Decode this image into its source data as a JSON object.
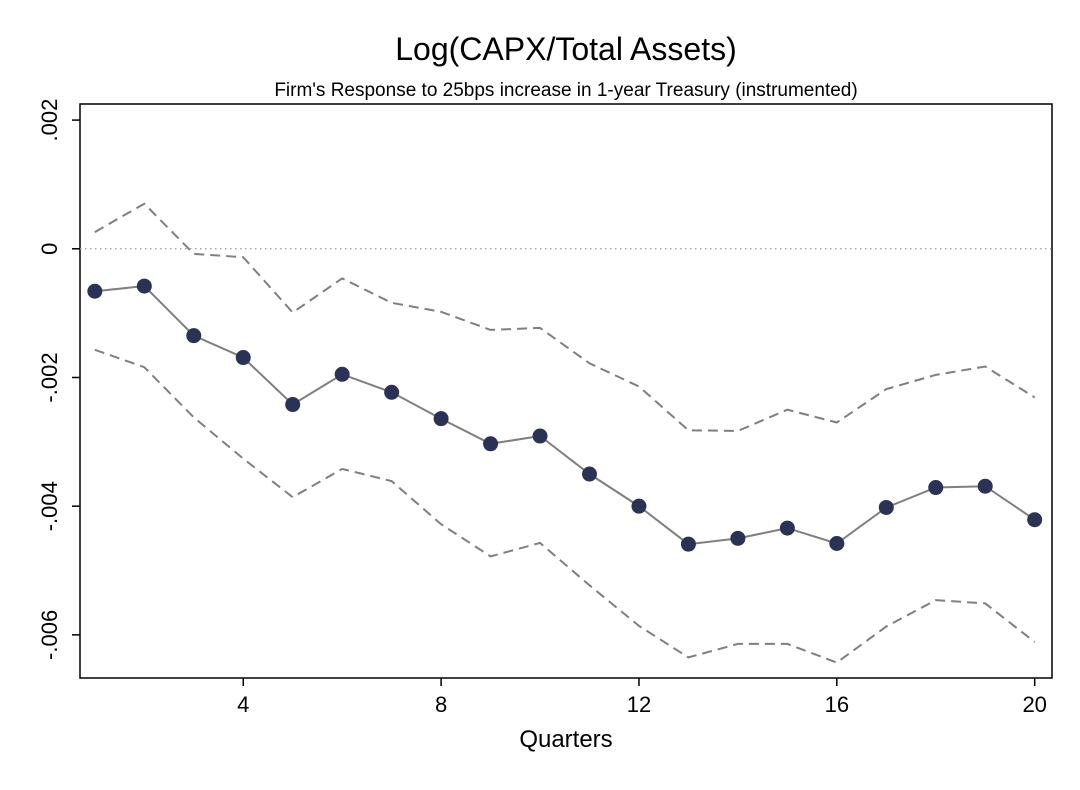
{
  "chart_data": {
    "type": "line",
    "title": "Log(CAPX/Total Assets)",
    "subtitle": "Firm's Response to 25bps increase in 1-year Treasury (instrumented)",
    "xlabel": "Quarters",
    "ylabel": "",
    "xlim": [
      0.7,
      20.35
    ],
    "ylim": [
      -0.00667,
      0.00225
    ],
    "x_ticks": [
      4,
      8,
      12,
      16,
      20
    ],
    "x_tick_labels": [
      "4",
      "8",
      "12",
      "16",
      "20"
    ],
    "y_ticks": [
      -0.006,
      -0.004,
      -0.002,
      0,
      0.002
    ],
    "y_tick_labels": [
      "-.006",
      "-.004",
      "-.002",
      "0",
      ".002"
    ],
    "reference_line_y": 0,
    "x": [
      1,
      2,
      3,
      4,
      5,
      6,
      7,
      8,
      9,
      10,
      11,
      12,
      13,
      14,
      15,
      16,
      17,
      18,
      19,
      20
    ],
    "series": [
      {
        "role": "estimate",
        "color": "#2a3256",
        "line_color": "#7f7f7f",
        "values": [
          -0.00066,
          -0.00058,
          -0.00135,
          -0.00169,
          -0.00242,
          -0.00195,
          -0.00223,
          -0.00264,
          -0.00303,
          -0.00291,
          -0.0035,
          -0.004,
          -0.00459,
          -0.0045,
          -0.00434,
          -0.00458,
          -0.00402,
          -0.00371,
          -0.00369,
          -0.00421
        ]
      },
      {
        "role": "upper-bound",
        "color": "#7f7f7f",
        "values": [
          0.00026,
          0.0007,
          -8e-05,
          -0.00013,
          -0.00099,
          -0.00046,
          -0.00084,
          -0.00098,
          -0.00126,
          -0.00123,
          -0.00178,
          -0.00214,
          -0.00282,
          -0.00283,
          -0.0025,
          -0.0027,
          -0.00218,
          -0.00196,
          -0.00183,
          -0.00231
        ]
      },
      {
        "role": "lower-bound",
        "color": "#7f7f7f",
        "values": [
          -0.00157,
          -0.00184,
          -0.00262,
          -0.00326,
          -0.00386,
          -0.00342,
          -0.00361,
          -0.00428,
          -0.00478,
          -0.00457,
          -0.00523,
          -0.00586,
          -0.00635,
          -0.00614,
          -0.00614,
          -0.00643,
          -0.00587,
          -0.00546,
          -0.00551,
          -0.00611
        ]
      }
    ]
  }
}
